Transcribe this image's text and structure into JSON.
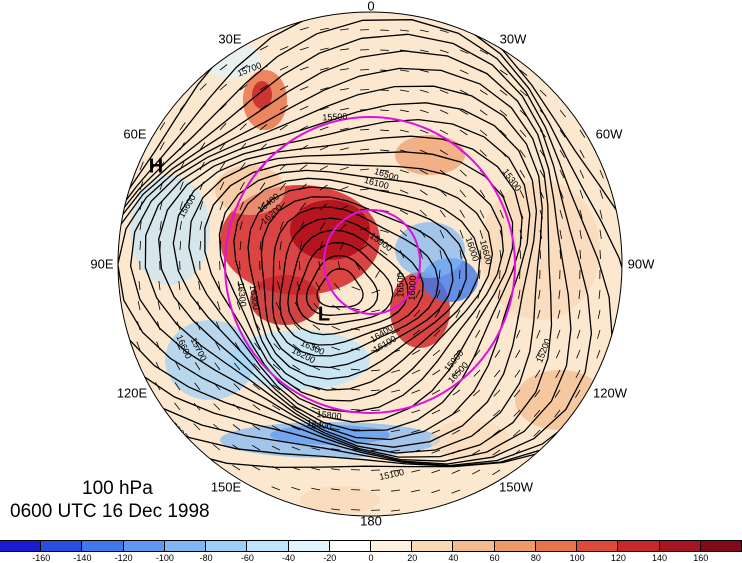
{
  "labels": {
    "level": "100 hPa",
    "time": "0600 UTC 16 Dec 1998"
  },
  "longitude_labels": {
    "lon_0": "0",
    "lon_30W": "30W",
    "lon_60W": "60W",
    "lon_90W": "90W",
    "lon_120W": "120W",
    "lon_150W": "150W",
    "lon_180": "180",
    "lon_150E": "150E",
    "lon_120E": "120E",
    "lon_90E": "90E",
    "lon_60E": "60E",
    "lon_30E": "30E"
  },
  "markers": {
    "high": "H",
    "low": "L"
  },
  "contour_labels": [
    "16500",
    "16400",
    "16300",
    "16300",
    "16200",
    "16100",
    "16000",
    "15900",
    "15800",
    "15700",
    "15600",
    "15500",
    "15300",
    "15200",
    "15100",
    "15000",
    "15500",
    "15700",
    "15900",
    "16000",
    "16100",
    "16200",
    "16300",
    "16400",
    "16500",
    "16600",
    "16500",
    "16400",
    "16600"
  ],
  "colorbar": {
    "colors": [
      "#1a1ad0",
      "#2a4fe0",
      "#3e78ea",
      "#5f98f0",
      "#7fb6f5",
      "#9dd0f8",
      "#bfe5fb",
      "#e0f4fd",
      "#ffffff",
      "#fdf0dc",
      "#fad9b6",
      "#f4bb8c",
      "#ee9a66",
      "#e8744c",
      "#dd4a3a",
      "#c8272c",
      "#a61622",
      "#7f0a18"
    ],
    "tick_labels": [
      "-160",
      "-140",
      "-120",
      "-100",
      "-80",
      "-60",
      "-40",
      "-20",
      "0",
      "20",
      "40",
      "60",
      "80",
      "100",
      "120",
      "140",
      "160"
    ]
  }
}
